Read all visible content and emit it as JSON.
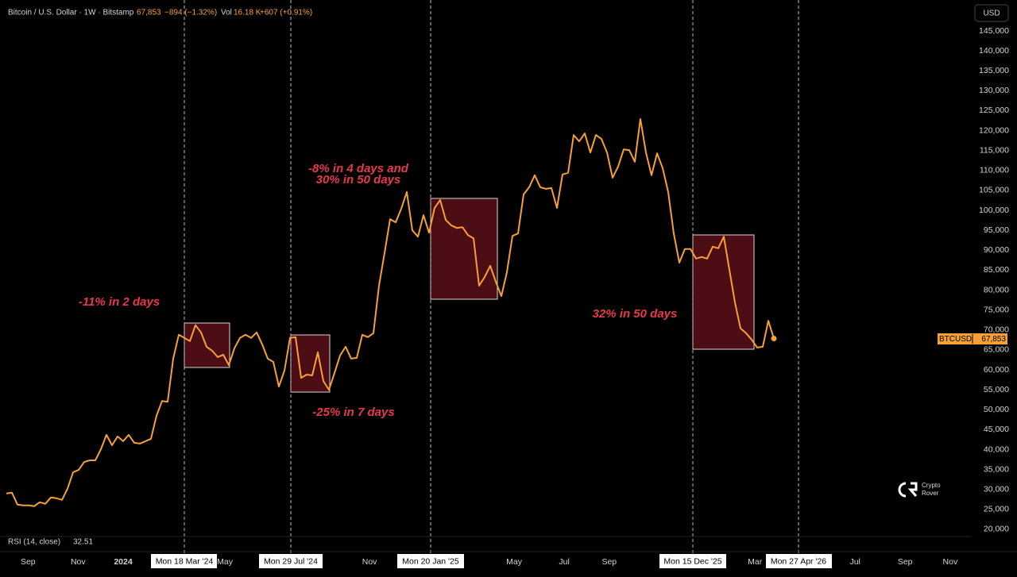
{
  "header": {
    "symbol": "Bitcoin / U.S. Dollar · 1W · Bitstamp",
    "close": "67,853",
    "change": "−894 (−1.32%)",
    "vol_label": "Vol",
    "vol": "16.18 K",
    "vol_change": "+607 (+0.91%)",
    "currency": "USD",
    "indicator": "RSI (14, close)",
    "indicator_value": "32.51",
    "watermark": [
      "Crypto",
      "Rover"
    ]
  },
  "chart_data": {
    "type": "line",
    "series": [
      {
        "name": "BTCUSD",
        "color": "#f7a035",
        "values": [
          29000,
          29200,
          26200,
          26000,
          26000,
          25800,
          26800,
          26400,
          28000,
          27800,
          27400,
          30200,
          34300,
          34900,
          36900,
          37300,
          37300,
          40100,
          43700,
          41100,
          43300,
          42100,
          43700,
          41700,
          41500,
          42100,
          42700,
          48500,
          52200,
          52000,
          62800,
          68800,
          68000,
          67200,
          71200,
          69400,
          65800,
          64800,
          63200,
          63800,
          61200,
          65400,
          68000,
          68800,
          68000,
          69400,
          66400,
          62800,
          62000,
          55800,
          59800,
          68000,
          68200,
          58000,
          58800,
          58600,
          64400,
          57200,
          55000,
          59200,
          63600,
          65800,
          62800,
          63000,
          68800,
          68200,
          69200,
          81100,
          89300,
          97800,
          97000,
          100400,
          104600,
          95000,
          93400,
          98800,
          94400,
          100600,
          102600,
          97600,
          96200,
          95600,
          95800,
          93800,
          93000,
          81100,
          83300,
          86100,
          82100,
          78500,
          84500,
          93600,
          94200,
          104000,
          105800,
          108800,
          105800,
          105400,
          105600,
          100600,
          109000,
          109400,
          118900,
          117300,
          119300,
          114500,
          118900,
          117900,
          114500,
          108200,
          111000,
          115300,
          115100,
          112200,
          122900,
          114500,
          108800,
          114300,
          110600,
          104600,
          94200,
          86900,
          90300,
          90300,
          87900,
          88300,
          87900,
          90900,
          90500,
          93400,
          85100,
          76900,
          70400,
          69200,
          67600,
          65600,
          65800,
          72300,
          67853
        ]
      }
    ],
    "xlim": [
      -1.143,
      173.43
    ],
    "xticks": [
      {
        "value": 3.9,
        "label": "Sep"
      },
      {
        "value": 12.9,
        "label": "Nov"
      },
      {
        "value": 21,
        "label": "2024"
      },
      {
        "value": 39.3,
        "label": "May"
      },
      {
        "value": 65.3,
        "label": "Nov"
      },
      {
        "value": 91.3,
        "label": "May"
      },
      {
        "value": 100.3,
        "label": "Jul"
      },
      {
        "value": 108.4,
        "label": "Sep"
      },
      {
        "value": 134.6,
        "label": "Mar"
      },
      {
        "value": 152.6,
        "label": "Jul"
      },
      {
        "value": 161.6,
        "label": "Sep"
      },
      {
        "value": 169.7,
        "label": "Nov"
      }
    ],
    "ylim": [
      18400,
      152760
    ],
    "yticks": [
      {
        "value": 20000,
        "label": "20,000"
      },
      {
        "value": 25000,
        "label": "25,000"
      },
      {
        "value": 30000,
        "label": "30,000"
      },
      {
        "value": 35000,
        "label": "35,000"
      },
      {
        "value": 40000,
        "label": "40,000"
      },
      {
        "value": 45000,
        "label": "45,000"
      },
      {
        "value": 50000,
        "label": "50,000"
      },
      {
        "value": 55000,
        "label": "55,000"
      },
      {
        "value": 60000,
        "label": "60,000"
      },
      {
        "value": 65000,
        "label": "65,000"
      },
      {
        "value": 70000,
        "label": "70,000"
      },
      {
        "value": 75000,
        "label": "75,000"
      },
      {
        "value": 80000,
        "label": "80,000"
      },
      {
        "value": 85000,
        "label": "85,000"
      },
      {
        "value": 90000,
        "label": "90,000"
      },
      {
        "value": 95000,
        "label": "95,000"
      },
      {
        "value": 100000,
        "label": "100,000"
      },
      {
        "value": 105000,
        "label": "105,000"
      },
      {
        "value": 110000,
        "label": "110,000"
      },
      {
        "value": 115000,
        "label": "115,000"
      },
      {
        "value": 120000,
        "label": "120,000"
      },
      {
        "value": 125000,
        "label": "125,000"
      },
      {
        "value": 130000,
        "label": "130,000"
      },
      {
        "value": 135000,
        "label": "135,000"
      },
      {
        "value": 140000,
        "label": "140,000"
      },
      {
        "value": 145000,
        "label": "145,000"
      }
    ],
    "date_markers": [
      "Mon 18 Mar '24",
      "Mon 29 Jul '24",
      "Mon 20 Jan '25",
      "Mon 15 Dec '25",
      "Mon 27 Apr '26"
    ],
    "annotations": [
      "-11% in 2 days",
      "-25% in 7 days",
      "-8% in 4 days and",
      "30% in 50 days",
      "32% in 50 days"
    ]
  }
}
